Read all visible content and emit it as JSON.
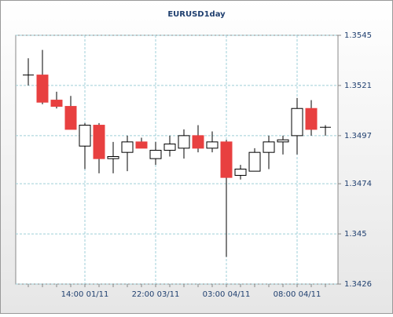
{
  "chart_data": {
    "type": "candlestick",
    "title": "EURUSD1day",
    "categories": [
      null,
      null,
      null,
      null,
      "14:00 01/11",
      null,
      null,
      null,
      null,
      "22:00 03/11",
      null,
      null,
      null,
      null,
      "03:00 04/11",
      null,
      null,
      null,
      null,
      "08:00 04/11",
      null,
      null
    ],
    "open": [
      1.3526,
      1.3526,
      1.3514,
      1.3511,
      1.3492,
      1.3502,
      1.3486,
      1.3489,
      1.3494,
      1.3486,
      1.349,
      1.3491,
      1.3497,
      1.3491,
      1.3494,
      1.3478,
      1.348,
      1.3489,
      1.3494,
      1.3497,
      1.351,
      1.3501
    ],
    "high": [
      1.3534,
      1.3538,
      1.3518,
      1.3516,
      1.3503,
      1.3503,
      1.3494,
      1.3497,
      1.3496,
      1.3494,
      1.3497,
      1.35,
      1.3502,
      1.3499,
      1.3495,
      1.3483,
      1.3491,
      1.3497,
      1.3497,
      1.3515,
      1.3514,
      1.3502
    ],
    "low": [
      1.3521,
      1.3512,
      1.351,
      1.35,
      1.3481,
      1.3479,
      1.3479,
      1.348,
      1.3491,
      1.3483,
      1.3487,
      1.3486,
      1.3489,
      1.3489,
      1.3439,
      1.3476,
      1.348,
      1.3481,
      1.3488,
      1.3488,
      1.3497,
      1.3497
    ],
    "close": [
      1.3526,
      1.3513,
      1.3511,
      1.35,
      1.3502,
      1.3486,
      1.3487,
      1.3494,
      1.3491,
      1.349,
      1.3493,
      1.3497,
      1.3491,
      1.3494,
      1.3477,
      1.3481,
      1.3489,
      1.3494,
      1.3495,
      1.351,
      1.35,
      1.3501
    ],
    "up_color": "#ffffff",
    "down_color": "#e84040",
    "ylim": [
      1.3426,
      1.3545
    ],
    "yticks": [
      1.3426,
      1.345,
      1.3474,
      1.3497,
      1.3521,
      1.3545
    ],
    "grid": true
  }
}
